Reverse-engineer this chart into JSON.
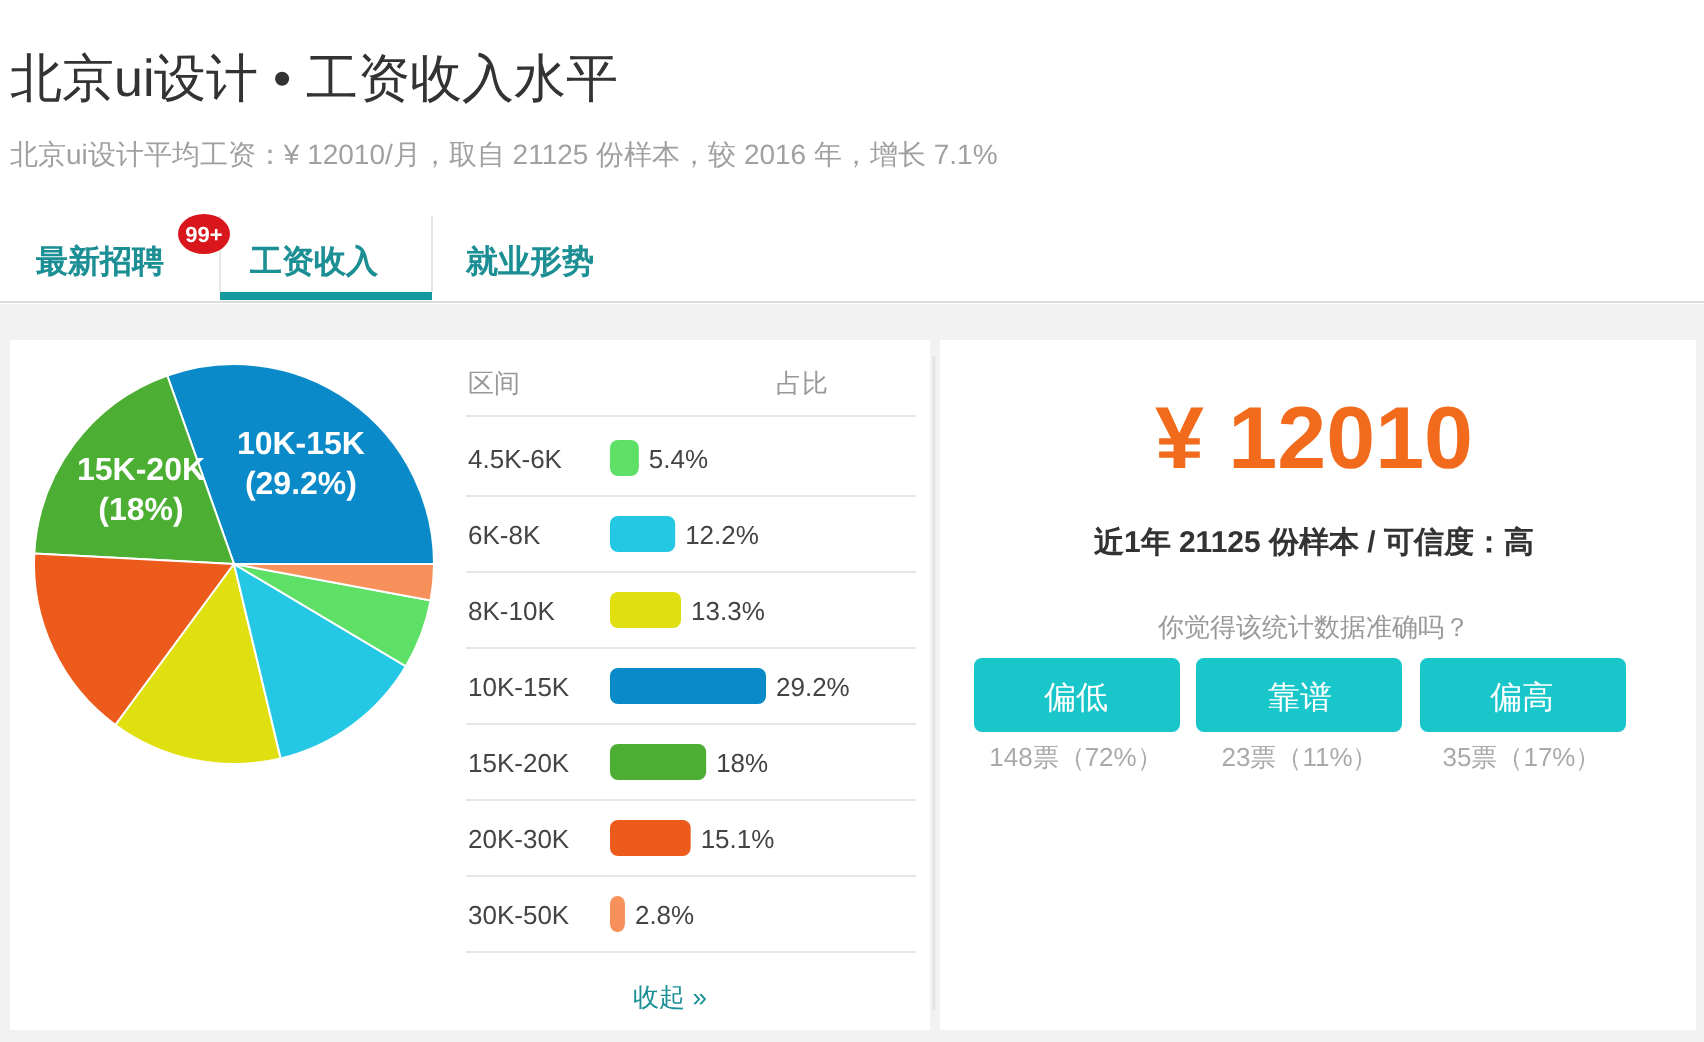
{
  "chart_data": [
    {
      "type": "pie",
      "title": "北京ui设计 • 工资收入水平",
      "subtitle": "北京ui设计平均工资：¥ 12010/月，取自 21125 份样本，较 2016 年，增长 7.1%",
      "annotations": [
        "最新招聘",
        "99+",
        "工资收入",
        "就业形势"
      ],
      "categories": [
        "10K-15K",
        "15K-20K",
        null,
        null,
        null,
        null,
        null
      ],
      "values": [
        29.2,
        18,
        15.1,
        13.3,
        12.2,
        5.4,
        2.8
      ],
      "colors": [
        "#0a8ac8",
        "#4cae32",
        "#ec5a1c",
        "#e0e010",
        "#25c8e4",
        "#5ee066",
        "#f7905a"
      ],
      "value_labels": [
        "(29.2%)",
        "(18%)",
        null,
        null,
        null,
        null,
        null
      ]
    },
    {
      "type": "bar",
      "orientation": "horizontal",
      "ylabel": "区间",
      "xlabel": "占比",
      "categories": [
        "4.5K-6K",
        "6K-8K",
        "8K-10K",
        "10K-15K",
        "15K-20K",
        "20K-30K",
        "30K-50K"
      ],
      "values": [
        5.4,
        12.2,
        13.3,
        29.2,
        18,
        15.1,
        2.8
      ],
      "colors": [
        "#5ee066",
        "#25c8e4",
        "#e0e010",
        "#0a8ac8",
        "#4cae32",
        "#ec5a1c",
        "#f7905a"
      ],
      "value_labels": [
        "5.4%",
        "12.2%",
        "13.3%",
        "29.2%",
        "18%",
        "15.1%",
        "2.8%"
      ],
      "annotations": [
        "收起 »"
      ]
    },
    {
      "type": "other",
      "annotations": [
        "¥ 12010",
        "近1年 21125 份样本 / 可信度：高",
        "你觉得该统计数据准确吗？",
        "偏低",
        "靠谱",
        "偏高",
        "148票（72%）",
        "23票（11%）",
        "35票（17%）"
      ]
    }
  ]
}
